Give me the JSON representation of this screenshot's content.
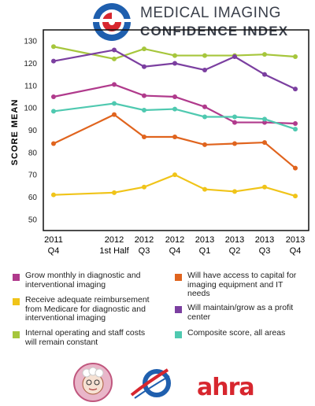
{
  "header": {
    "title_line1": "MEDICAL IMAGING",
    "title_line2": "CONFIDENCE INDEX"
  },
  "chart_data": {
    "type": "line",
    "ylabel": "SCORE MEAN",
    "ylim": [
      45,
      135
    ],
    "yticks": [
      50,
      60,
      70,
      80,
      90,
      100,
      110,
      120,
      130
    ],
    "categories": [
      {
        "top": "2011",
        "bottom": "Q4"
      },
      {
        "top": "2012",
        "bottom": "1st Half"
      },
      {
        "top": "2012",
        "bottom": "Q3"
      },
      {
        "top": "2012",
        "bottom": "Q4"
      },
      {
        "top": "2013",
        "bottom": "Q1"
      },
      {
        "top": "2013",
        "bottom": "Q2"
      },
      {
        "top": "2013",
        "bottom": "Q3"
      },
      {
        "top": "2013",
        "bottom": "Q4"
      }
    ],
    "grid": false,
    "legend_position": "bottom",
    "series": [
      {
        "name": "Internal operating and staff costs will remain constant",
        "color": "#a6c63c",
        "values": [
          127.5,
          122,
          126.5,
          123.5,
          123.5,
          123.5,
          124,
          123
        ]
      },
      {
        "name": "Will maintain/grow as a profit center",
        "color": "#7b3fa0",
        "values": [
          121,
          126,
          118.5,
          120,
          117,
          123,
          115,
          108.5
        ]
      },
      {
        "name": "Grow monthly in diagnostic and interventional imaging",
        "color": "#b03a8c",
        "values": [
          105,
          110.5,
          105.5,
          105,
          100.5,
          93.5,
          93.5,
          93
        ]
      },
      {
        "name": "Composite score, all areas",
        "color": "#4fc9b0",
        "values": [
          98.5,
          102,
          99,
          99.5,
          96,
          96,
          95,
          90.5
        ]
      },
      {
        "name": "Will have access to capital for imaging equipment and IT needs",
        "color": "#e0641e",
        "values": [
          84,
          97,
          87,
          87,
          83.5,
          84,
          84.5,
          73
        ]
      },
      {
        "name": "Receive adequate reimbursement from Medicare for diagnostic and interventional imaging",
        "color": "#f0c419",
        "values": [
          61,
          62,
          64.5,
          70,
          63.5,
          62.5,
          64.5,
          60.5
        ]
      }
    ]
  },
  "legend": {
    "left": [
      {
        "label": "Grow monthly in diagnostic and interventional imaging",
        "color": "#b03a8c"
      },
      {
        "label": "Receive adequate reimbursement from Medicare for diagnostic and interventional imaging",
        "color": "#f0c419"
      },
      {
        "label": "Internal operating and staff costs will remain constant",
        "color": "#a6c63c"
      }
    ],
    "right": [
      {
        "label": "Will have access to capital for imaging equipment and IT needs",
        "color": "#e0641e"
      },
      {
        "label": "Will maintain/grow as a profit center",
        "color": "#7b3fa0"
      },
      {
        "label": "Composite score, all areas",
        "color": "#4fc9b0"
      }
    ]
  },
  "footer": {
    "ahra_logo_text": "ahra"
  }
}
